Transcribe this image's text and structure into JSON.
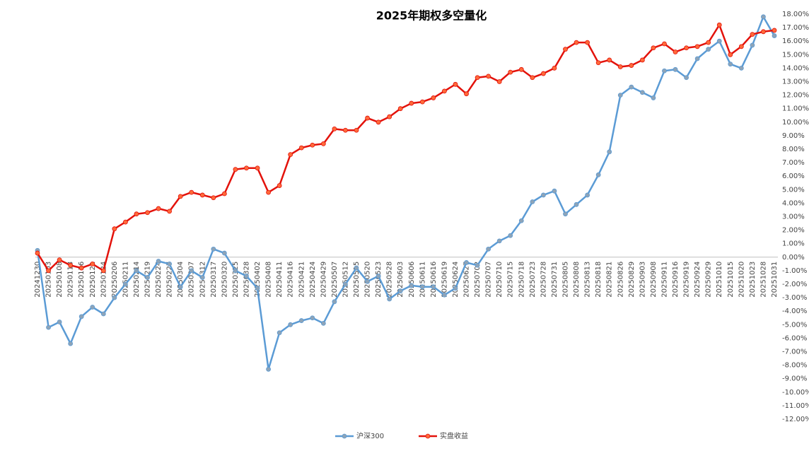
{
  "chart_data": {
    "type": "line",
    "title": "2025年期权多空量化",
    "categories": [
      "20241230",
      "20250103",
      "20250108",
      "20250113",
      "20250116",
      "20250121",
      "20250124",
      "20250206",
      "20250211",
      "20250214",
      "20250219",
      "20250224",
      "20250227",
      "20250304",
      "20250307",
      "20250312",
      "20250317",
      "20250320",
      "20250325",
      "20250328",
      "20250402",
      "20250408",
      "20250411",
      "20250416",
      "20250421",
      "20250424",
      "20250429",
      "20250507",
      "20250512",
      "20250515",
      "20250520",
      "20250523",
      "20250528",
      "20250603",
      "20250606",
      "20250611",
      "20250616",
      "20250619",
      "20250624",
      "20250627",
      "20250702",
      "20250707",
      "20250710",
      "20250715",
      "20250718",
      "20250723",
      "20250728",
      "20250731",
      "20250805",
      "20250808",
      "20250813",
      "20250818",
      "20250821",
      "20250826",
      "20250829",
      "20250903",
      "20250908",
      "20250911",
      "20250916",
      "20250919",
      "20250924",
      "20250929",
      "20251010",
      "20251015",
      "20251020",
      "20251023",
      "20251028",
      "20251031"
    ],
    "series": [
      {
        "name": "沪深300",
        "color": "#5b9bd5",
        "marker_color": "#8ea4b8",
        "values": [
          0.5,
          -5.2,
          -4.8,
          -6.4,
          -4.4,
          -3.7,
          -4.2,
          -3.0,
          -2.0,
          -1.0,
          -1.5,
          -0.3,
          -0.5,
          -2.2,
          -1.0,
          -1.5,
          0.6,
          0.3,
          -1.0,
          -1.4,
          -2.3,
          -8.3,
          -5.6,
          -5.0,
          -4.7,
          -4.5,
          -4.9,
          -3.3,
          -2.0,
          -0.8,
          -1.8,
          -1.4,
          -3.1,
          -2.5,
          -2.1,
          -2.2,
          -2.2,
          -2.8,
          -2.3,
          -0.4,
          -0.6,
          0.6,
          1.2,
          1.6,
          2.7,
          4.1,
          4.6,
          4.9,
          3.2,
          3.9,
          4.6,
          6.1,
          7.8,
          12.0,
          12.6,
          12.2,
          11.8,
          13.8,
          13.9,
          13.3,
          14.7,
          15.4,
          16.0,
          14.3,
          14.0,
          15.7,
          17.8,
          16.4
        ]
      },
      {
        "name": "实盘收益",
        "color": "#e3120b",
        "marker_color": "#ff6a3a",
        "values": [
          0.3,
          -1.0,
          -0.2,
          -0.6,
          -0.8,
          -0.5,
          -1.0,
          2.1,
          2.6,
          3.2,
          3.3,
          3.6,
          3.4,
          4.5,
          4.8,
          4.6,
          4.4,
          4.7,
          6.5,
          6.6,
          6.6,
          4.8,
          5.3,
          7.6,
          8.1,
          8.3,
          8.4,
          9.5,
          9.4,
          9.4,
          10.3,
          10.0,
          10.4,
          11.0,
          11.4,
          11.5,
          11.8,
          12.3,
          12.8,
          12.1,
          13.3,
          13.4,
          13.0,
          13.7,
          13.9,
          13.3,
          13.6,
          14.0,
          15.4,
          15.9,
          15.9,
          14.4,
          14.6,
          14.1,
          14.2,
          14.6,
          15.5,
          15.8,
          15.2,
          15.5,
          15.6,
          15.9,
          17.2,
          15.0,
          15.6,
          16.5,
          16.7,
          16.8
        ]
      }
    ],
    "ylim": [
      -12,
      18
    ],
    "yticks": [
      {
        "value": 18,
        "label": "18.00%"
      },
      {
        "value": 17,
        "label": "17.00%"
      },
      {
        "value": 16,
        "label": "16.00%"
      },
      {
        "value": 15,
        "label": "15.00%"
      },
      {
        "value": 14,
        "label": "14.00%"
      },
      {
        "value": 13,
        "label": "13.00%"
      },
      {
        "value": 12,
        "label": "12.00%"
      },
      {
        "value": 11,
        "label": "11.00%"
      },
      {
        "value": 10,
        "label": "10.00%"
      },
      {
        "value": 9,
        "label": "9.00%"
      },
      {
        "value": 8,
        "label": "8.00%"
      },
      {
        "value": 7,
        "label": "7.00%"
      },
      {
        "value": 6,
        "label": "6.00%"
      },
      {
        "value": 5,
        "label": "5.00%"
      },
      {
        "value": 4,
        "label": "4.00%"
      },
      {
        "value": 3,
        "label": "3.00%"
      },
      {
        "value": 2,
        "label": "2.00%"
      },
      {
        "value": 1,
        "label": "1.00%"
      },
      {
        "value": 0,
        "label": "0.00%"
      },
      {
        "value": -1,
        "label": "-1.00%"
      },
      {
        "value": -2,
        "label": "-2.00%"
      },
      {
        "value": -3,
        "label": "-3.00%"
      },
      {
        "value": -4,
        "label": "-4.00%"
      },
      {
        "value": -5,
        "label": "-5.00%"
      },
      {
        "value": -6,
        "label": "-6.00%"
      },
      {
        "value": -7,
        "label": "-7.00%"
      },
      {
        "value": -8,
        "label": "-8.00%"
      },
      {
        "value": -9,
        "label": "-9.00%"
      },
      {
        "value": -10,
        "label": "-10.00%"
      },
      {
        "value": -11,
        "label": "-11.00%"
      },
      {
        "value": -12,
        "label": "-12.00%"
      }
    ],
    "grid": false,
    "legend": "bottom"
  }
}
